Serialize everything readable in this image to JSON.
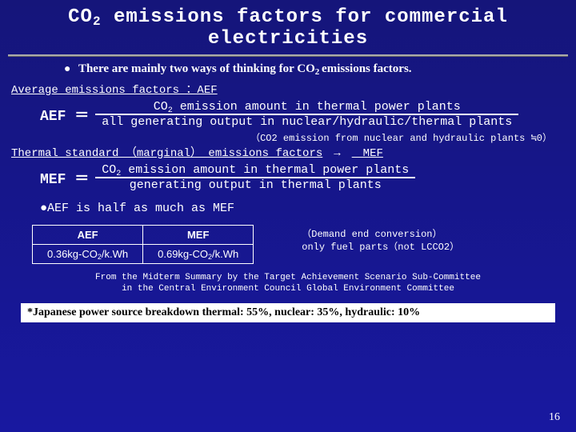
{
  "title_html": "CO<sub>2</sub> emissions factors for commercial electricities",
  "intro_html": "<span class='bullet'>●</span> There are mainly two ways of thinking for  CO<sub>2 </sub>emissions factors.",
  "aef": {
    "label": "Average emissions factors ：AEF",
    "lhs": "AEF ＝",
    "numerator_html": "CO<sub>2</sub> emission amount in thermal power plants",
    "denominator": "all generating output in nuclear/hydraulic/thermal plants"
  },
  "note": "（CO2 emission from nuclear and hydraulic plants ≒0）",
  "mef": {
    "label_html": "<span class='u'>Thermal standard （marginal） emissions factors</span>　→　<span class='u'>　MEF</span>",
    "lhs": "MEF ＝",
    "numerator_html": "CO<sub>2</sub> emission amount in thermal power plants",
    "denominator": "generating output in thermal plants"
  },
  "comparison": "●AEF is half as much as MEF",
  "table": {
    "headers": [
      "AEF",
      "MEF"
    ],
    "values_html": [
      "0.36kg-CO<sub>2</sub>/k.Wh",
      "0.69kg-CO<sub>2</sub>/k.Wh"
    ]
  },
  "side_note": {
    "line1": "（Demand end conversion）",
    "line2": "only fuel parts（not LCCO2）"
  },
  "source": {
    "line1": "From the Midterm Summary by the Target Achievement Scenario Sub-Committee",
    "line2": "in the Central Environment Council Global Environment Committee"
  },
  "breakdown": "*Japanese power source breakdown    thermal: 55%, nuclear: 35%, hydraulic: 10%",
  "page": "16",
  "colors": {
    "bg_top": "#15157a",
    "bg_bottom": "#1818a0",
    "text": "#ffffff",
    "box_bg": "#ffffff",
    "box_text": "#000000"
  }
}
